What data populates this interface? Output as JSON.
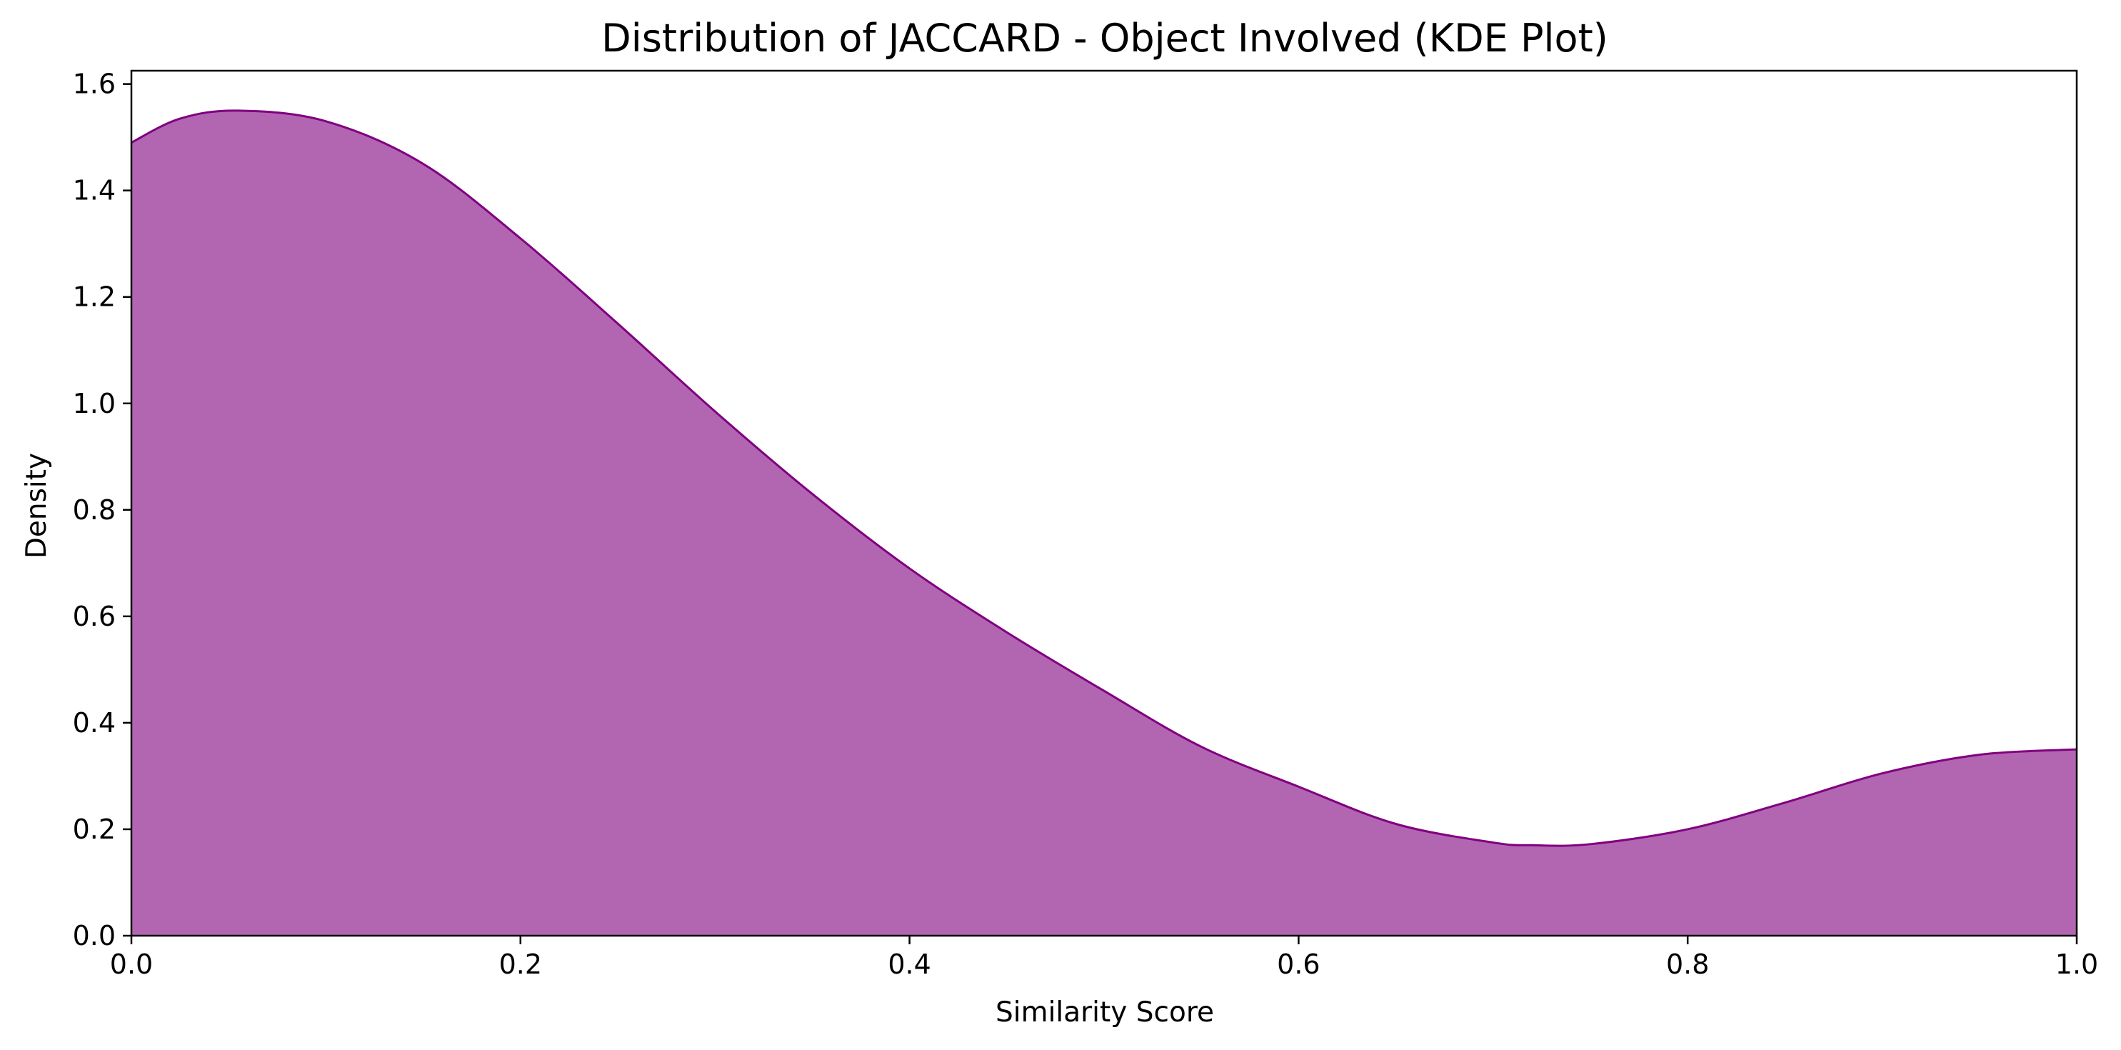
{
  "chart_data": {
    "type": "area",
    "title": "Distribution of JACCARD - Object Involved (KDE Plot)",
    "xlabel": "Similarity Score",
    "ylabel": "Density",
    "xlim": [
      0.0,
      1.0
    ],
    "ylim": [
      0.0,
      1.625
    ],
    "grid": false,
    "legend": "none",
    "xticks": [
      "0.0",
      "0.2",
      "0.4",
      "0.6",
      "0.8",
      "1.0"
    ],
    "yticks": [
      "0.0",
      "0.2",
      "0.4",
      "0.6",
      "0.8",
      "1.0",
      "1.2",
      "1.4",
      "1.6"
    ],
    "colors": {
      "fill": "#b266b2",
      "line": "#800080"
    },
    "series": [
      {
        "x": [
          0.0,
          0.025,
          0.055,
          0.1,
          0.15,
          0.2,
          0.25,
          0.3,
          0.35,
          0.4,
          0.45,
          0.5,
          0.55,
          0.6,
          0.65,
          0.7,
          0.72,
          0.75,
          0.8,
          0.85,
          0.9,
          0.95,
          1.0
        ],
        "values": [
          1.49,
          1.535,
          1.55,
          1.53,
          1.45,
          1.31,
          1.15,
          0.985,
          0.83,
          0.69,
          0.57,
          0.46,
          0.355,
          0.28,
          0.21,
          0.175,
          0.17,
          0.172,
          0.2,
          0.25,
          0.305,
          0.34,
          0.35
        ]
      }
    ]
  }
}
